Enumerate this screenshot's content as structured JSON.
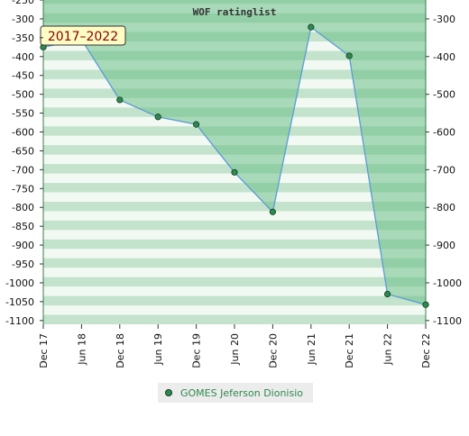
{
  "chart_data": {
    "type": "area",
    "title": "WOF ratinglist",
    "badge": "2017–2022",
    "x_categories": [
      "Dec 17",
      "Jun 18",
      "Dec 18",
      "Jun 19",
      "Dec 19",
      "Jun 20",
      "Dec 20",
      "Jun 21",
      "Dec 21",
      "Jun 22",
      "Dec 22"
    ],
    "series": [
      {
        "name": "GOMES Jeferson Dionisio",
        "values": [
          -375,
          -355,
          -515,
          -560,
          -580,
          -707,
          -812,
          -322,
          -398,
          -1030,
          -1058
        ]
      }
    ],
    "y_left": {
      "ticks": [
        -250,
        -300,
        -350,
        -400,
        -450,
        -500,
        -550,
        -600,
        -650,
        -700,
        -750,
        -800,
        -850,
        -900,
        -950,
        -1000,
        -1050,
        -1100
      ],
      "range": [
        -1110,
        -250
      ]
    },
    "y_right": {
      "ticks": [
        -300,
        -400,
        -500,
        -600,
        -700,
        -800,
        -900,
        -1000,
        -1100
      ]
    },
    "grid": "alternating horizontal bands",
    "legend_position": "bottom",
    "colors": {
      "band_dark": "#c4e3cc",
      "band_light": "#f2f9f3",
      "fill": "#6bbf86",
      "header": "#a5d9b3",
      "line": "#5b9bd5",
      "marker": "#2e8a4e",
      "badge_bg": "#fffcc4"
    }
  }
}
